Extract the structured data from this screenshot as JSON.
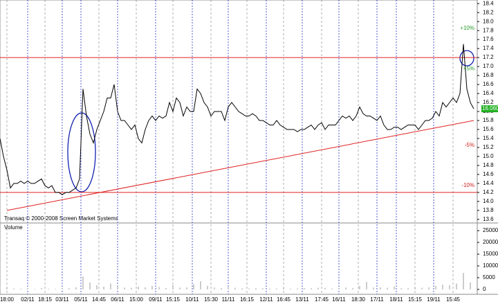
{
  "chart_data": [
    {
      "type": "line",
      "series": [
        {
          "color": "#000000",
          "x": [
            0,
            0.5,
            1,
            1.5,
            2,
            2.5,
            3,
            3.5,
            4,
            4.5,
            5,
            5.5,
            6,
            6.5,
            7,
            7.5,
            8,
            8.5,
            9,
            9.5,
            10,
            10.5,
            11,
            11.5,
            12,
            12.5,
            13,
            13.5,
            14,
            14.5,
            15,
            15.5,
            16,
            16.5,
            17,
            17.5,
            18,
            18.5,
            19,
            19.5,
            20,
            20.5,
            21,
            21.5,
            22,
            22.5,
            23,
            23.5,
            24,
            24.5,
            25,
            25.5,
            26,
            26.5,
            27,
            27.5,
            28,
            28.5,
            29,
            29.5,
            30,
            30.5,
            31,
            31.5,
            32,
            32.5,
            33,
            33.5,
            34,
            34.5,
            35,
            35.5,
            36,
            36.5,
            37,
            37.5,
            38,
            38.5,
            39,
            39.5,
            40,
            40.5,
            41,
            41.5,
            42,
            42.5,
            43,
            43.5,
            44,
            44.5,
            45,
            45.5,
            46,
            46.5,
            47,
            47.5,
            48,
            48.5,
            49,
            49.5,
            50,
            50.5,
            51,
            51.5,
            52,
            52.5,
            53,
            53.5,
            54,
            54.5,
            55,
            55.5,
            56,
            56.5,
            57,
            57.5,
            58,
            58.5,
            59,
            59.5,
            60,
            60.5,
            61,
            61.5,
            62,
            62.5,
            63,
            63.5,
            64,
            64.5,
            65,
            65.5,
            66,
            66.5,
            67,
            67.5,
            68,
            68.5
          ],
          "values": [
            15.4,
            15.0,
            14.7,
            14.3,
            14.4,
            14.4,
            14.45,
            14.4,
            14.45,
            14.4,
            14.4,
            14.45,
            14.5,
            14.35,
            14.3,
            14.35,
            14.2,
            14.2,
            14.15,
            14.2,
            14.2,
            14.25,
            14.3,
            14.5,
            16.5,
            15.9,
            15.5,
            15.3,
            15.6,
            15.8,
            16.0,
            16.3,
            16.3,
            16.6,
            16.0,
            15.8,
            15.8,
            15.7,
            15.6,
            15.7,
            15.4,
            15.3,
            15.6,
            15.8,
            15.9,
            15.8,
            15.9,
            15.85,
            15.9,
            16.2,
            16.0,
            16.3,
            16.2,
            15.9,
            16.1,
            16.0,
            16.0,
            16.5,
            16.4,
            16.2,
            16.1,
            15.9,
            16.0,
            16.0,
            16.0,
            15.8,
            16.1,
            16.2,
            16.1,
            16.0,
            15.95,
            15.9,
            15.9,
            15.95,
            15.9,
            15.8,
            15.8,
            15.75,
            15.7,
            15.7,
            15.8,
            15.7,
            15.65,
            15.6,
            15.6,
            15.6,
            15.55,
            15.6,
            15.6,
            15.65,
            15.7,
            15.6,
            15.7,
            15.75,
            15.6,
            15.7,
            15.7,
            15.7,
            15.8,
            15.9,
            15.85,
            15.9,
            15.8,
            15.9,
            16.1,
            15.95,
            15.9,
            15.9,
            15.85,
            15.8,
            15.9,
            15.7,
            15.6,
            15.6,
            15.65,
            15.65,
            15.6,
            15.65,
            15.7,
            15.7,
            15.7,
            15.6,
            15.7,
            15.8,
            15.8,
            15.85,
            16.0,
            15.9,
            16.2,
            16.1,
            16.2,
            16.3,
            16.2,
            16.4,
            17.5,
            16.5,
            16.2,
            16.06
          ]
        }
      ],
      "xlim": [
        0,
        69
      ],
      "xticks": [
        {
          "value": 1,
          "label": "18:00"
        },
        {
          "value": 4,
          "label": "02/11"
        },
        {
          "value": 6.5,
          "label": "18:15"
        },
        {
          "value": 9,
          "label": "03/11"
        },
        {
          "value": 11.7,
          "label": "05/11"
        },
        {
          "value": 14.3,
          "label": "14:45"
        },
        {
          "value": 17,
          "label": "06/11"
        },
        {
          "value": 19.7,
          "label": "15:00"
        },
        {
          "value": 22.5,
          "label": "09/11"
        },
        {
          "value": 25,
          "label": "15:15"
        },
        {
          "value": 27.8,
          "label": "10/11"
        },
        {
          "value": 30.5,
          "label": "15:30"
        },
        {
          "value": 33,
          "label": "11/11"
        },
        {
          "value": 35.7,
          "label": "16:15"
        },
        {
          "value": 38.5,
          "label": "12/11"
        },
        {
          "value": 41,
          "label": "16:45"
        },
        {
          "value": 43.7,
          "label": "13/11"
        },
        {
          "value": 46.5,
          "label": "17:45"
        },
        {
          "value": 49,
          "label": "16/11"
        },
        {
          "value": 51.8,
          "label": "18:30"
        },
        {
          "value": 54.5,
          "label": "17/11"
        },
        {
          "value": 57.3,
          "label": "18/11"
        },
        {
          "value": 60,
          "label": "15:15"
        },
        {
          "value": 62.7,
          "label": "19/11"
        },
        {
          "value": 65.5,
          "label": "15:45"
        }
      ],
      "ylim": [
        13.52,
        18.48
      ],
      "yticks": [
        13.6,
        13.8,
        14.0,
        14.2,
        14.4,
        14.6,
        14.8,
        15.0,
        15.2,
        15.4,
        15.6,
        15.8,
        16.0,
        16.2,
        16.4,
        16.6,
        16.8,
        17.0,
        17.2,
        17.4,
        17.6,
        17.8,
        18.0,
        18.2,
        18.4
      ],
      "yticks_labels": [
        "13.6",
        "13.8",
        "14.0",
        "14.2",
        "14.4",
        "14.6",
        "14.8",
        "15.0",
        "15.2",
        "15.4",
        "15.6",
        "15.8",
        "16.0",
        "16.2",
        "16.4",
        "16.6",
        "16.8",
        "17.0",
        "17.2",
        "17.4",
        "17.6",
        "17.8",
        "18.0",
        "18.2",
        "18.4"
      ],
      "levels": [
        17.2,
        14.2
      ],
      "trend": {
        "x": [
          1,
          68.5
        ],
        "values": [
          13.8,
          15.8
        ]
      },
      "annotations": [
        {
          "text": "+10%",
          "y": 17.85,
          "color": "#2a9a2a"
        },
        {
          "text": "+5%",
          "y": 16.95,
          "color": "#2a9a2a"
        },
        {
          "text": "-5%",
          "y": 15.25,
          "color": "#d02020"
        },
        {
          "text": "-10%",
          "y": 14.35,
          "color": "#d02020"
        }
      ],
      "last_price": {
        "value": 16.06,
        "value_label": "16.060"
      },
      "credit": "Transaq © 2000-2008 Screen Market Systems"
    },
    {
      "type": "bar",
      "title": "Volume",
      "color": "#aaaaaa",
      "x": [
        0,
        1,
        2,
        3,
        4,
        5,
        6,
        7,
        8,
        9,
        10,
        11,
        12,
        13,
        14,
        15,
        16,
        17,
        18,
        19,
        20,
        21,
        22,
        23,
        24,
        25,
        26,
        27,
        28,
        29,
        30,
        31,
        32,
        33,
        34,
        35,
        36,
        37,
        38,
        39,
        40,
        41,
        42,
        43,
        44,
        45,
        46,
        47,
        48,
        49,
        50,
        51,
        52,
        53,
        54,
        55,
        56,
        57,
        58,
        59,
        60,
        61,
        62,
        63,
        64,
        65,
        66,
        67,
        68
      ],
      "values": [
        1500,
        800,
        400,
        300,
        500,
        200,
        600,
        300,
        200,
        400,
        500,
        900,
        5500,
        3000,
        1800,
        1200,
        2500,
        1500,
        800,
        700,
        1200,
        900,
        1500,
        1000,
        600,
        1800,
        800,
        900,
        2200,
        3500,
        1500,
        800,
        600,
        1000,
        700,
        500,
        400,
        600,
        500,
        300,
        400,
        500,
        300,
        400,
        600,
        500,
        700,
        600,
        400,
        500,
        800,
        600,
        1500,
        3200,
        800,
        900,
        700,
        1200,
        500,
        600,
        800,
        700,
        900,
        1500,
        2000,
        1800,
        2500,
        7000,
        3000
      ],
      "xlim": [
        0,
        69
      ],
      "ylim": [
        -2080,
        28270
      ],
      "yticks": [
        0,
        5000,
        10000,
        15000,
        20000,
        25000
      ]
    }
  ]
}
